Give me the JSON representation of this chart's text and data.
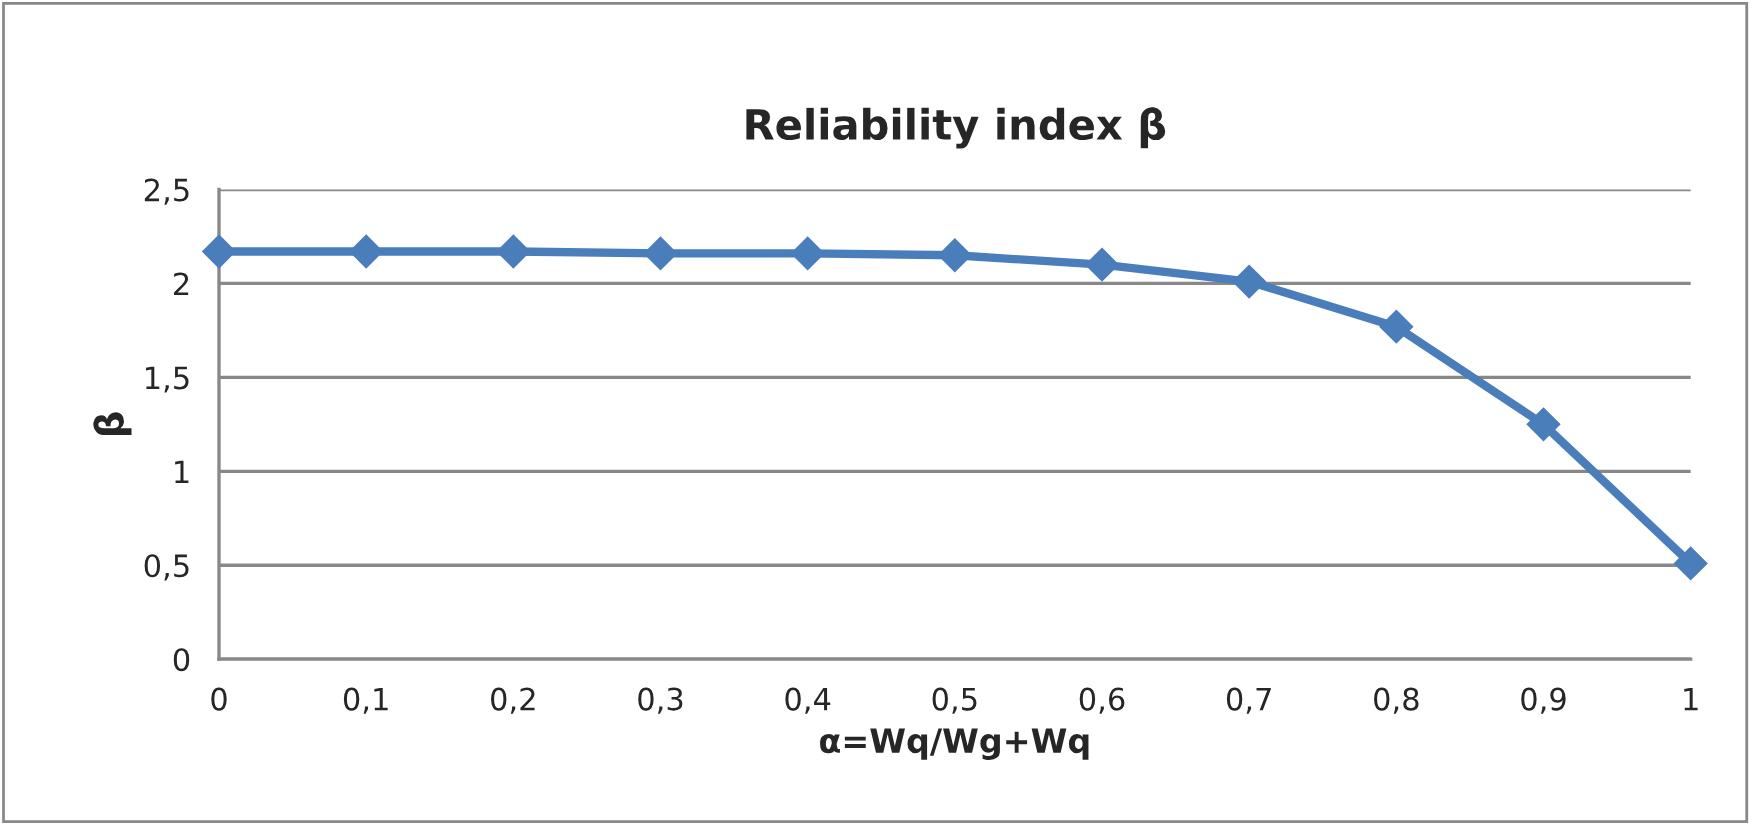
{
  "chart_data": {
    "type": "line",
    "title": "Reliability index β",
    "xlabel": "α=Wq/Wg+Wq",
    "ylabel": "β",
    "x": [
      0,
      0.1,
      0.2,
      0.3,
      0.4,
      0.5,
      0.6,
      0.7,
      0.8,
      0.9,
      1
    ],
    "series": [
      {
        "color": "#4a7ebb",
        "values": [
          2.17,
          2.17,
          2.17,
          2.16,
          2.16,
          2.15,
          2.1,
          2.01,
          1.77,
          1.25,
          0.51
        ]
      }
    ],
    "xlim": [
      0,
      1
    ],
    "ylim": [
      0,
      2.5
    ],
    "xticks": [
      0,
      {
        "value": 0.1,
        "label": "0,1"
      },
      {
        "value": 0.2,
        "label": "0,2"
      },
      {
        "value": 0.3,
        "label": "0,3"
      },
      {
        "value": 0.4,
        "label": "0,4"
      },
      {
        "value": 0.5,
        "label": "0,5"
      },
      {
        "value": 0.6,
        "label": "0,6"
      },
      {
        "value": 0.7,
        "label": "0,7"
      },
      {
        "value": 0.8,
        "label": "0,8"
      },
      {
        "value": 0.9,
        "label": "0,9"
      },
      1
    ],
    "yticks": [
      0,
      {
        "value": 0.5,
        "label": "0,5"
      },
      1,
      {
        "value": 1.5,
        "label": "1,5"
      },
      2,
      {
        "value": 2.5,
        "label": "2,5"
      }
    ],
    "grid": "y",
    "marker": "diamond",
    "line_style": "solid"
  }
}
